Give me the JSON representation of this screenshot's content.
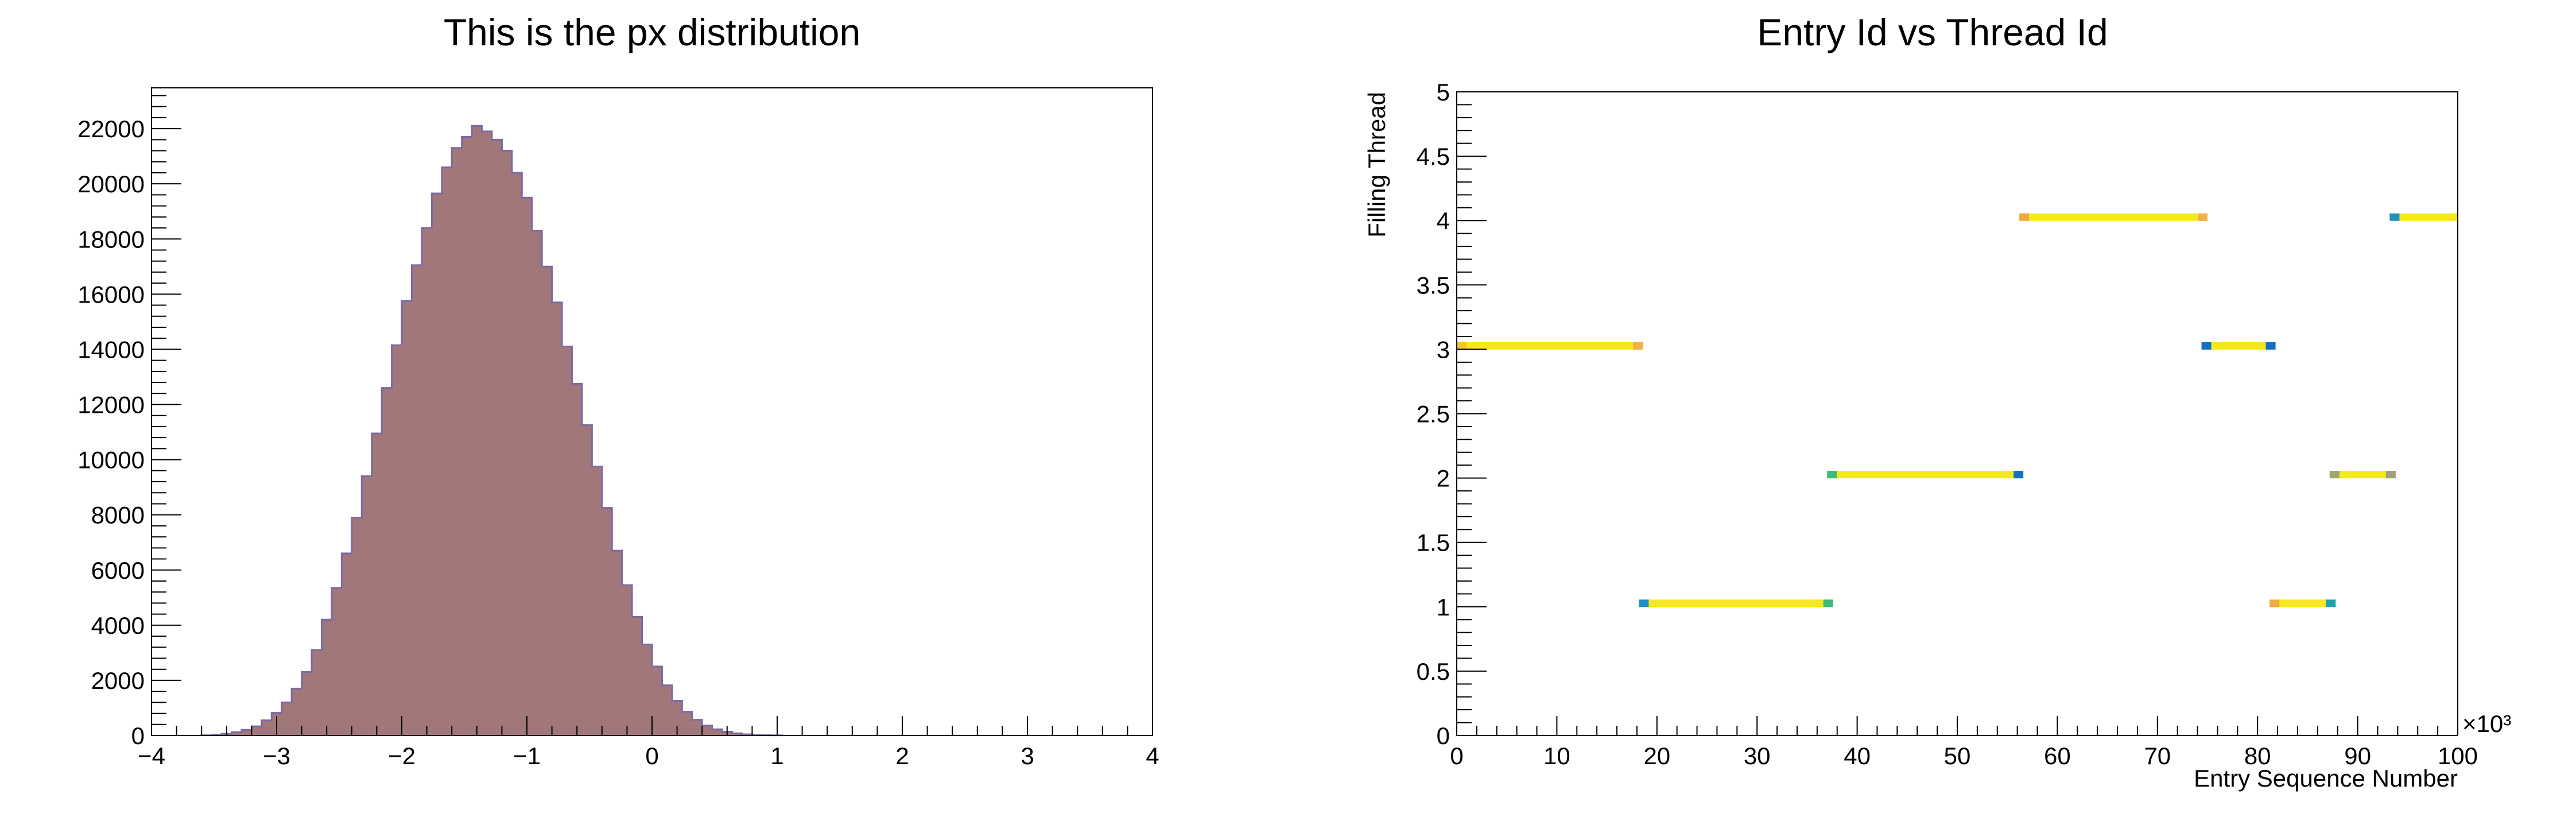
{
  "chart_data": [
    {
      "type": "bar",
      "title": "This is the px distribution",
      "xlabel": "",
      "ylabel": "",
      "xlim": [
        -4,
        4
      ],
      "ylim": [
        0,
        23480
      ],
      "x_ticks": [
        "−4",
        "−3",
        "−2",
        "−1",
        "0",
        "1",
        "2",
        "3",
        "4"
      ],
      "y_ticks": [
        "0",
        "2000",
        "4000",
        "6000",
        "8000",
        "10000",
        "12000",
        "14000",
        "16000",
        "18000",
        "20000",
        "22000"
      ],
      "bin_width": 0.08,
      "bins_x_min": -3.6,
      "values": [
        7,
        31,
        61,
        122,
        205,
        330,
        550,
        820,
        1200,
        1700,
        2300,
        3100,
        4200,
        5350,
        6600,
        7900,
        9400,
        10950,
        12600,
        14150,
        15750,
        17050,
        18400,
        19650,
        20600,
        21300,
        21700,
        22100,
        21900,
        21600,
        21200,
        20400,
        19500,
        18300,
        17000,
        15700,
        14100,
        12750,
        11250,
        9750,
        8250,
        6700,
        5450,
        4300,
        3300,
        2500,
        1820,
        1260,
        860,
        570,
        360,
        225,
        135,
        78,
        42,
        22,
        11,
        5
      ],
      "fill_color": "#a2777a",
      "line_color": "#7a6aa3",
      "grid": false
    },
    {
      "type": "scatter",
      "title": "Entry Id vs Thread Id",
      "xlabel": "Entry Sequence Number",
      "ylabel": "Filling Thread",
      "x_unit": "×10³",
      "xlim": [
        0,
        100
      ],
      "ylim": [
        0,
        5
      ],
      "x_ticks": [
        "0",
        "10",
        "20",
        "30",
        "40",
        "50",
        "60",
        "70",
        "80",
        "90",
        "100"
      ],
      "y_ticks": [
        "0",
        "0.5",
        "1",
        "1.5",
        "2",
        "2.5",
        "3",
        "3.5",
        "4",
        "4.5",
        "5"
      ],
      "segments": [
        {
          "thread": 3,
          "x_start": 0,
          "x_end": 18.6,
          "edge_start_color": "#f5c52e",
          "edge_end_color": "#f0b04a"
        },
        {
          "thread": 1,
          "x_start": 18.2,
          "x_end": 37.6,
          "edge_start_color": "#1e8fc0",
          "edge_end_color": "#3cbc77"
        },
        {
          "thread": 2,
          "x_start": 37.0,
          "x_end": 56.6,
          "edge_start_color": "#3cbc77",
          "edge_end_color": "#1270c8"
        },
        {
          "thread": 4,
          "x_start": 56.2,
          "x_end": 75.0,
          "edge_start_color": "#f0a844",
          "edge_end_color": "#f0b04a"
        },
        {
          "thread": 3,
          "x_start": 74.4,
          "x_end": 81.8,
          "edge_start_color": "#1270c8",
          "edge_end_color": "#1270c8"
        },
        {
          "thread": 1,
          "x_start": 81.2,
          "x_end": 87.8,
          "edge_start_color": "#f0a844",
          "edge_end_color": "#1ea0b0"
        },
        {
          "thread": 2,
          "x_start": 87.2,
          "x_end": 93.8,
          "edge_start_color": "#9aa870",
          "edge_end_color": "#a0a080"
        },
        {
          "thread": 4,
          "x_start": 93.2,
          "x_end": 100.0,
          "edge_start_color": "#1e8fc0",
          "edge_end_color": "#f5e81e"
        }
      ],
      "segment_color": "#f5e81e",
      "grid": false
    }
  ]
}
